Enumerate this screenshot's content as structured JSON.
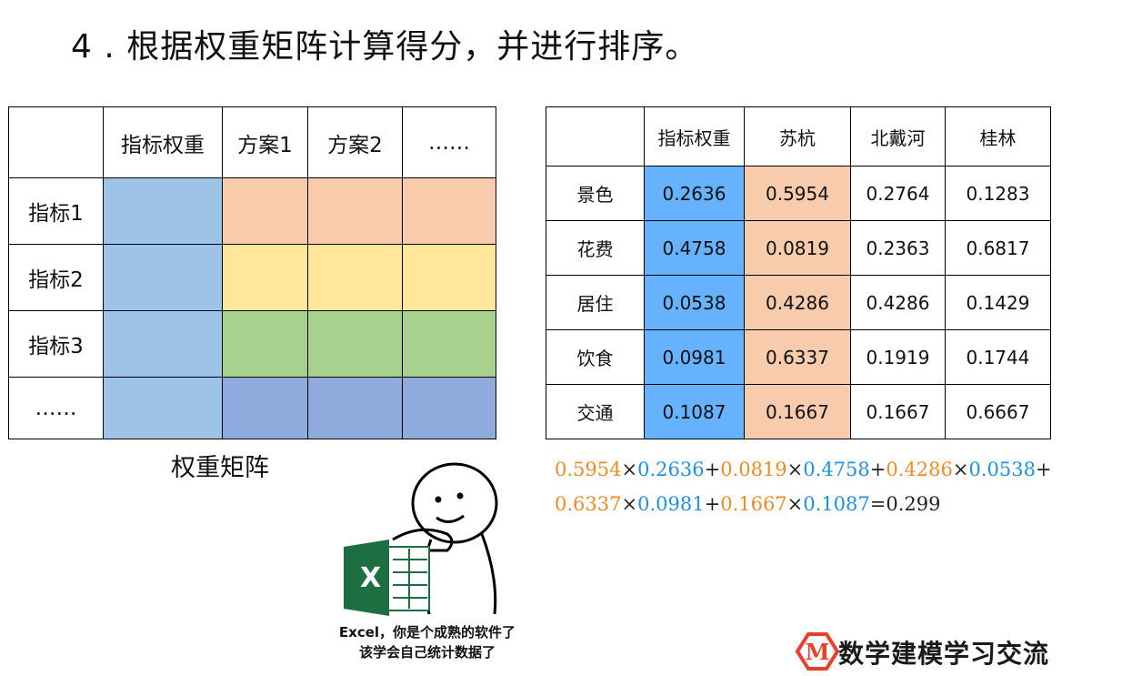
{
  "title": "4 . 根据权重矩阵计算得分，并进行排序。",
  "schematic": {
    "headers": [
      "",
      "指标权重",
      "方案1",
      "方案2",
      "……"
    ],
    "rows": [
      "指标1",
      "指标2",
      "指标3",
      "……"
    ],
    "caption": "权重矩阵",
    "colors": {
      "weight": "#9dc3e6",
      "row1": "#f8cbad",
      "row2": "#ffe699",
      "row3": "#a9d18e",
      "row4": "#8faadc"
    }
  },
  "values_table": {
    "headers": [
      "",
      "指标权重",
      "苏杭",
      "北戴河",
      "桂林"
    ],
    "rows": [
      {
        "label": "景色",
        "cells": [
          "0.2636",
          "0.5954",
          "0.2764",
          "0.1283"
        ]
      },
      {
        "label": "花费",
        "cells": [
          "0.4758",
          "0.0819",
          "0.2363",
          "0.6817"
        ]
      },
      {
        "label": "居住",
        "cells": [
          "0.0538",
          "0.4286",
          "0.4286",
          "0.1429"
        ]
      },
      {
        "label": "饮食",
        "cells": [
          "0.0981",
          "0.6337",
          "0.1919",
          "0.1744"
        ]
      },
      {
        "label": "交通",
        "cells": [
          "0.1087",
          "0.1667",
          "0.1667",
          "0.6667"
        ]
      }
    ],
    "colors": {
      "weight_col": "#66b2ff",
      "score_col": "#f8cbad"
    }
  },
  "formula": {
    "line1": [
      {
        "t": "0.5954",
        "c": "o"
      },
      {
        "t": "×",
        "c": "k"
      },
      {
        "t": "0.2636",
        "c": "b"
      },
      {
        "t": "+",
        "c": "k"
      },
      {
        "t": "0.0819",
        "c": "o"
      },
      {
        "t": "×",
        "c": "k"
      },
      {
        "t": "0.4758",
        "c": "b"
      },
      {
        "t": "+",
        "c": "k"
      },
      {
        "t": "0.4286",
        "c": "o"
      },
      {
        "t": "×",
        "c": "k"
      },
      {
        "t": "0.0538",
        "c": "b"
      },
      {
        "t": "+",
        "c": "k"
      }
    ],
    "line2": [
      {
        "t": "0.6337",
        "c": "o"
      },
      {
        "t": "×",
        "c": "k"
      },
      {
        "t": "0.0981",
        "c": "b"
      },
      {
        "t": "+",
        "c": "k"
      },
      {
        "t": "0.1667",
        "c": "o"
      },
      {
        "t": "×",
        "c": "k"
      },
      {
        "t": "0.1087",
        "c": "b"
      },
      {
        "t": "=",
        "c": "k"
      },
      {
        "t": "0.299",
        "c": "k"
      }
    ],
    "colors": {
      "orange": "#f08a24",
      "blue": "#1e90e6"
    }
  },
  "meme": {
    "line1": "Excel，你是个成熟的软件了",
    "line2": "该学会自己统计数据了",
    "icon": "excel-icon"
  },
  "logo": {
    "letter": "M",
    "text": "数学建模学习交流",
    "color": "#e8402a"
  }
}
